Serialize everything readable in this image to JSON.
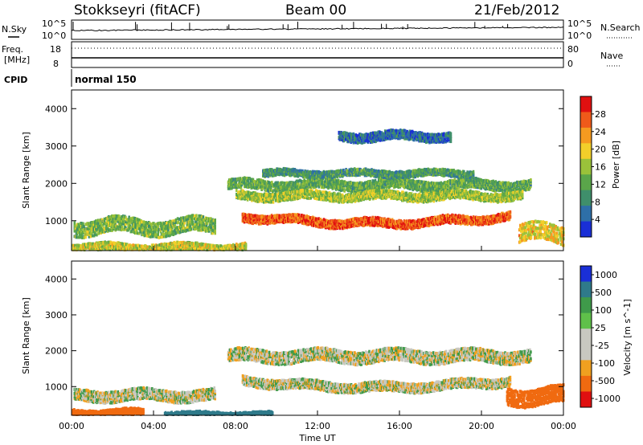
{
  "header": {
    "station": "Stokkseyri (fitACF)",
    "beam": "Beam 00",
    "date": "21/Feb/2012"
  },
  "noise_panel": {
    "left_label": "N.Sky",
    "right_label": "N.Search",
    "left_ticks": [
      "10^5",
      "10^0"
    ],
    "right_ticks": [
      "10^5",
      "10^0"
    ]
  },
  "freq_panel": {
    "left_label_1": "Freq.",
    "left_label_2": "[MHz]",
    "right_label": "Nave",
    "left_ticks": [
      "18",
      "8"
    ],
    "right_ticks": [
      "80",
      "0"
    ]
  },
  "cpid_panel": {
    "label": "CPID",
    "program": "normal 150"
  },
  "colors": {
    "power_scale": [
      "#1a2fd6",
      "#2e6fa8",
      "#3f8f6b",
      "#5aa64a",
      "#9ac23a",
      "#f2cf2a",
      "#f59a20",
      "#ef5a1a",
      "#e01010"
    ],
    "velocity_scale": [
      "#1a2fd6",
      "#2f7a8a",
      "#3f9a4a",
      "#5fc04a",
      "#c8c8c0",
      "#c8c8c0",
      "#f0a020",
      "#f06a10",
      "#e01010"
    ]
  },
  "chart_data": [
    {
      "type": "heatmap",
      "panel": "power",
      "ylabel": "Slant Range [km]",
      "yticks": [
        "1000",
        "2000",
        "3000",
        "4000"
      ],
      "ylim": [
        200,
        4500
      ],
      "colorbar_label": "Power [dB]",
      "colorbar_ticks": [
        "4",
        "8",
        "12",
        "16",
        "20",
        "24",
        "28"
      ],
      "colorbar_range": [
        0,
        32
      ],
      "echo_regions": [
        {
          "t_start": 7.6,
          "t_end": 22.4,
          "range_center_start": 2000,
          "range_center_end": 2000,
          "width": 260,
          "power": 12
        },
        {
          "t_start": 8.0,
          "t_end": 22.0,
          "range_center_start": 1700,
          "range_center_end": 1700,
          "width": 220,
          "power": 16
        },
        {
          "t_start": 8.3,
          "t_end": 21.4,
          "range_center_start": 1150,
          "range_center_end": 1150,
          "width": 220,
          "power": 27
        },
        {
          "t_start": 9.3,
          "t_end": 19.6,
          "range_center_start": 2300,
          "range_center_end": 2300,
          "width": 170,
          "power": 10
        },
        {
          "t_start": 0.1,
          "t_end": 7.0,
          "range_center_start": 900,
          "range_center_end": 900,
          "width": 420,
          "power": 14
        },
        {
          "t_start": 0.0,
          "t_end": 8.5,
          "range_center_start": 320,
          "range_center_end": 320,
          "width": 200,
          "power": 18
        },
        {
          "t_start": 13.0,
          "t_end": 18.5,
          "range_center_start": 3300,
          "range_center_end": 3300,
          "width": 240,
          "power": 6
        },
        {
          "t_start": 21.8,
          "t_end": 24.0,
          "range_center_start": 700,
          "range_center_end": 700,
          "width": 500,
          "power": 20
        }
      ]
    },
    {
      "type": "heatmap",
      "panel": "velocity",
      "xlabel": "Time UT",
      "xticks": [
        "00:00",
        "04:00",
        "08:00",
        "12:00",
        "16:00",
        "20:00",
        "00:00"
      ],
      "xlim": [
        0,
        24
      ],
      "ylabel": "Slant Range [km]",
      "yticks": [
        "1000",
        "2000",
        "3000",
        "4000"
      ],
      "ylim": [
        200,
        4500
      ],
      "colorbar_label": "Velocity [m s^-1]",
      "colorbar_ticks": [
        "1000",
        "500",
        "100",
        "25",
        "-25",
        "-100",
        "-500",
        "-1000"
      ],
      "echo_regions": [
        {
          "t_start": 7.6,
          "t_end": 22.4,
          "range_center_start": 1900,
          "range_center_end": 1900,
          "width": 360,
          "velocity": 0
        },
        {
          "t_start": 8.3,
          "t_end": 21.4,
          "range_center_start": 1200,
          "range_center_end": 1200,
          "width": 260,
          "velocity": 0
        },
        {
          "t_start": 0.1,
          "t_end": 7.0,
          "range_center_start": 800,
          "range_center_end": 800,
          "width": 320,
          "velocity": 0
        },
        {
          "t_start": 0.0,
          "t_end": 3.5,
          "range_center_start": 300,
          "range_center_end": 300,
          "width": 200,
          "velocity": -300
        },
        {
          "t_start": 4.5,
          "t_end": 9.8,
          "range_center_start": 260,
          "range_center_end": 260,
          "width": 120,
          "velocity": 200
        },
        {
          "t_start": 21.2,
          "t_end": 24.0,
          "range_center_start": 800,
          "range_center_end": 800,
          "width": 500,
          "velocity": -400
        }
      ]
    }
  ]
}
